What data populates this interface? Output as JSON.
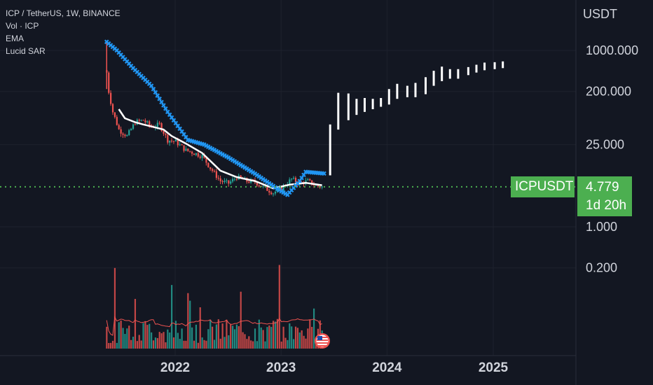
{
  "legend": {
    "symbol_line": "ICP / TetherUS, 1W, BINANCE",
    "vol_line": "Vol · ICP",
    "ema_line": "EMA",
    "sar_line": "Lucid SAR"
  },
  "axis": {
    "currency": "USDT"
  },
  "price_label": {
    "symbol": "ICPUSDT",
    "price": "4.779",
    "countdown": "1d 20h"
  },
  "colors": {
    "background": "#131722",
    "up": "#26a69a",
    "down": "#ef5350",
    "ema": "#ffffff",
    "sar": "#2196f3",
    "projection": "#ffffff",
    "price_line": "#4caf50",
    "volume_ma": "#ef5350"
  },
  "chart_data": {
    "type": "candlestick",
    "title": "ICP / TetherUS, 1W, BINANCE",
    "scale": "log",
    "ylabel": "USDT",
    "y_ticks": [
      {
        "value": 1000,
        "label": "1000.000"
      },
      {
        "value": 200,
        "label": "200.000"
      },
      {
        "value": 25,
        "label": "25.000"
      },
      {
        "value": 1,
        "label": "1.000"
      },
      {
        "value": 0.2,
        "label": "0.200"
      }
    ],
    "x_ticks": [
      {
        "date": "2022-01-01",
        "label": "2022"
      },
      {
        "date": "2023-01-01",
        "label": "2023"
      },
      {
        "date": "2024-01-01",
        "label": "2024"
      },
      {
        "date": "2025-01-01",
        "label": "2025"
      }
    ],
    "last_price": 4.779,
    "price_series": [
      {
        "date": "2021-05-10",
        "close": 420
      },
      {
        "date": "2021-05-17",
        "close": 200
      },
      {
        "date": "2021-05-31",
        "close": 90
      },
      {
        "date": "2021-06-21",
        "close": 45
      },
      {
        "date": "2021-07-19",
        "close": 35
      },
      {
        "date": "2021-08-16",
        "close": 60
      },
      {
        "date": "2021-09-13",
        "close": 65
      },
      {
        "date": "2021-10-11",
        "close": 50
      },
      {
        "date": "2021-11-08",
        "close": 55
      },
      {
        "date": "2021-12-06",
        "close": 30
      },
      {
        "date": "2022-01-03",
        "close": 28
      },
      {
        "date": "2022-02-07",
        "close": 20
      },
      {
        "date": "2022-03-07",
        "close": 18
      },
      {
        "date": "2022-04-04",
        "close": 16
      },
      {
        "date": "2022-05-02",
        "close": 10
      },
      {
        "date": "2022-06-06",
        "close": 6
      },
      {
        "date": "2022-07-04",
        "close": 5.5
      },
      {
        "date": "2022-08-01",
        "close": 7
      },
      {
        "date": "2022-09-05",
        "close": 6
      },
      {
        "date": "2022-10-03",
        "close": 5.8
      },
      {
        "date": "2022-11-07",
        "close": 4.5
      },
      {
        "date": "2022-12-05",
        "close": 3.8
      },
      {
        "date": "2023-01-02",
        "close": 4.5
      },
      {
        "date": "2023-02-06",
        "close": 6.5
      },
      {
        "date": "2023-03-06",
        "close": 5.5
      },
      {
        "date": "2023-04-03",
        "close": 6
      },
      {
        "date": "2023-05-01",
        "close": 5
      },
      {
        "date": "2023-05-22",
        "close": 4.779
      }
    ],
    "ema": [
      {
        "date": "2021-06-21",
        "value": 100
      },
      {
        "date": "2021-07-12",
        "value": 70
      },
      {
        "date": "2021-08-16",
        "value": 60
      },
      {
        "date": "2021-09-13",
        "value": 55
      },
      {
        "date": "2021-10-18",
        "value": 50
      },
      {
        "date": "2021-11-22",
        "value": 45
      },
      {
        "date": "2021-12-20",
        "value": 35
      },
      {
        "date": "2022-02-07",
        "value": 26
      },
      {
        "date": "2022-04-04",
        "value": 18
      },
      {
        "date": "2022-06-06",
        "value": 9
      },
      {
        "date": "2022-08-01",
        "value": 7
      },
      {
        "date": "2022-10-03",
        "value": 6
      },
      {
        "date": "2022-12-05",
        "value": 4.5
      },
      {
        "date": "2023-01-30",
        "value": 5.2
      },
      {
        "date": "2023-03-27",
        "value": 5.6
      },
      {
        "date": "2023-05-22",
        "value": 5.1
      }
    ],
    "sar": [
      {
        "date": "2021-05-10",
        "value": 1400
      },
      {
        "date": "2021-06-14",
        "value": 1000
      },
      {
        "date": "2021-08-09",
        "value": 500
      },
      {
        "date": "2021-10-11",
        "value": 250
      },
      {
        "date": "2021-12-06",
        "value": 90
      },
      {
        "date": "2022-02-14",
        "value": 30
      },
      {
        "date": "2022-04-11",
        "value": 25
      },
      {
        "date": "2022-07-04",
        "value": 15
      },
      {
        "date": "2022-10-03",
        "value": 8
      },
      {
        "date": "2022-12-26",
        "value": 4.2
      },
      {
        "date": "2023-01-23",
        "value": 3.5
      },
      {
        "date": "2023-03-06",
        "value": 6
      },
      {
        "date": "2023-03-27",
        "value": 8.6
      },
      {
        "date": "2023-06-05",
        "value": 8
      }
    ],
    "projection_bars": [
      {
        "date": "2023-06-19",
        "low": 7.5,
        "high": 55
      },
      {
        "date": "2023-07-17",
        "low": 45,
        "high": 190
      },
      {
        "date": "2023-08-21",
        "low": 65,
        "high": 185
      },
      {
        "date": "2023-09-18",
        "low": 80,
        "high": 150
      },
      {
        "date": "2023-10-16",
        "low": 90,
        "high": 155
      },
      {
        "date": "2023-11-13",
        "low": 100,
        "high": 150
      },
      {
        "date": "2023-12-11",
        "low": 110,
        "high": 155
      },
      {
        "date": "2024-01-08",
        "low": 120,
        "high": 220
      },
      {
        "date": "2024-02-05",
        "low": 150,
        "high": 270
      },
      {
        "date": "2024-03-11",
        "low": 160,
        "high": 250
      },
      {
        "date": "2024-04-08",
        "low": 160,
        "high": 280
      },
      {
        "date": "2024-05-13",
        "low": 180,
        "high": 350
      },
      {
        "date": "2024-06-10",
        "low": 250,
        "high": 450
      },
      {
        "date": "2024-07-08",
        "low": 300,
        "high": 530
      },
      {
        "date": "2024-08-05",
        "low": 330,
        "high": 480
      },
      {
        "date": "2024-09-02",
        "low": 330,
        "high": 480
      },
      {
        "date": "2024-10-07",
        "low": 380,
        "high": 520
      },
      {
        "date": "2024-11-04",
        "low": 420,
        "high": 570
      },
      {
        "date": "2024-12-02",
        "low": 460,
        "high": 620
      },
      {
        "date": "2025-01-06",
        "low": 480,
        "high": 630
      },
      {
        "date": "2025-02-03",
        "low": 500,
        "high": 650
      }
    ]
  }
}
